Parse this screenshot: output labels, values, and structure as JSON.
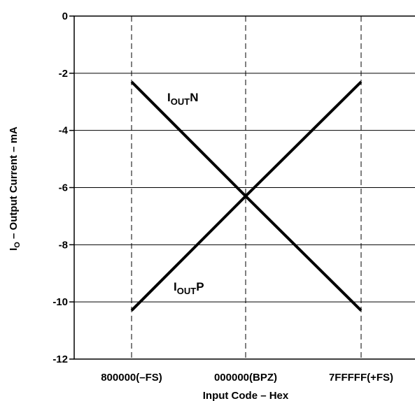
{
  "chart_data": {
    "type": "line",
    "title": "",
    "xlabel": "Input Code – Hex",
    "ylabel_main": "I",
    "ylabel_sub": "O",
    "ylabel_rest": " – Output Current – mA",
    "categories": [
      "800000(–FS)",
      "000000(BPZ)",
      "7FFFFF(+FS)"
    ],
    "ylim": [
      -12,
      0
    ],
    "yticks": [
      0,
      -2,
      -4,
      -6,
      -8,
      -10,
      -12
    ],
    "grid": true,
    "series": [
      {
        "name_main": "I",
        "name_sub": "OUT",
        "name_tail": "N",
        "values": [
          -2.3,
          -6.3,
          -10.3
        ]
      },
      {
        "name_main": "I",
        "name_sub": "OUT",
        "name_tail": "P",
        "values": [
          -10.3,
          -6.3,
          -2.3
        ]
      }
    ]
  }
}
